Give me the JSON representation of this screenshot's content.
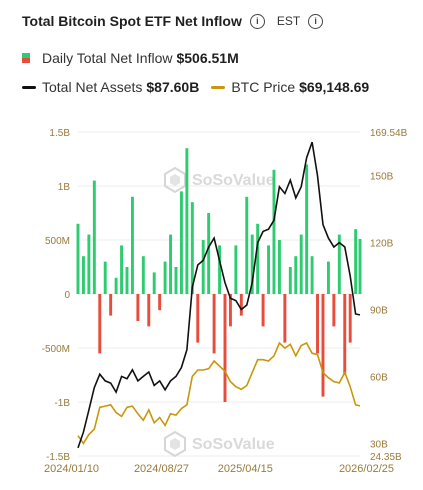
{
  "header": {
    "title": "Total Bitcoin Spot ETF Net Inflow",
    "timezone": "EST",
    "info_icon": "info-circle-icon"
  },
  "legend": {
    "inflow_label": "Daily Total Net Inflow",
    "inflow_value": "$506.51M",
    "assets_label": "Total Net Assets",
    "assets_value": "$87.60B",
    "price_label": "BTC Price",
    "price_value": "$69,148.69"
  },
  "watermark": "SoSoValue",
  "colors": {
    "inflow_pos": "#2ecc71",
    "inflow_neg": "#e74c3c",
    "assets": "#111111",
    "price": "#c9960c",
    "axis_text": "#9a7a3a",
    "grid": "#eeeeee"
  },
  "chart_data": {
    "type": "bar",
    "x_ticks": [
      "2024/01/10",
      "2024/08/27",
      "2025/04/15",
      "2026/02/25"
    ],
    "left_axis": {
      "ticks": [
        "1.5B",
        "1B",
        "500M",
        "0",
        "-500M",
        "-1B",
        "-1.5B"
      ],
      "ylim": [
        -1.5,
        1.5
      ]
    },
    "right_axis": {
      "ticks": [
        "169.54B",
        "150B",
        "120B",
        "90B",
        "60B",
        "30B",
        "24.35B"
      ],
      "ylim": [
        24.35,
        169.54
      ]
    },
    "series": [
      {
        "name": "Daily Total Net Inflow",
        "type": "bar",
        "axis": "left",
        "unit": "B",
        "x": [
          "2024/01/10",
          "2024/01/25",
          "2024/02/09",
          "2024/02/24",
          "2024/03/10",
          "2024/03/25",
          "2024/04/09",
          "2024/04/24",
          "2024/05/09",
          "2024/05/24",
          "2024/06/08",
          "2024/06/23",
          "2024/07/08",
          "2024/07/23",
          "2024/08/07",
          "2024/08/22",
          "2024/09/06",
          "2024/09/21",
          "2024/10/06",
          "2024/10/21",
          "2024/11/05",
          "2024/11/20",
          "2024/12/05",
          "2024/12/20",
          "2025/01/04",
          "2025/01/19",
          "2025/02/03",
          "2025/02/18",
          "2025/03/05",
          "2025/03/20",
          "2025/04/04",
          "2025/04/19",
          "2025/05/04",
          "2025/05/19",
          "2025/06/03",
          "2025/06/18",
          "2025/07/03",
          "2025/07/18",
          "2025/08/02",
          "2025/08/17",
          "2025/09/01",
          "2025/09/16",
          "2025/10/01",
          "2025/10/16",
          "2025/10/31",
          "2025/11/15",
          "2025/11/30",
          "2025/12/15",
          "2025/12/30",
          "2026/01/14",
          "2026/01/29",
          "2026/02/13",
          "2026/02/25"
        ],
        "values": [
          0.65,
          0.35,
          0.55,
          1.05,
          -0.55,
          0.3,
          -0.2,
          0.15,
          0.45,
          0.25,
          0.9,
          -0.25,
          0.35,
          -0.3,
          0.2,
          -0.15,
          0.3,
          0.55,
          0.25,
          0.95,
          1.35,
          0.85,
          -0.45,
          0.5,
          0.75,
          -0.55,
          0.45,
          -1.0,
          -0.3,
          0.45,
          -0.2,
          0.9,
          0.55,
          0.65,
          -0.3,
          0.45,
          1.15,
          0.5,
          -0.45,
          0.25,
          0.35,
          0.55,
          1.2,
          0.35,
          -0.55,
          -0.95,
          0.3,
          -0.3,
          0.55,
          -0.75,
          -0.45,
          0.6,
          0.51
        ]
      },
      {
        "name": "Total Net Assets",
        "type": "line",
        "axis": "right",
        "unit": "B",
        "x": [
          "2024/01/10",
          "2024/01/25",
          "2024/02/09",
          "2024/02/24",
          "2024/03/10",
          "2024/03/25",
          "2024/04/09",
          "2024/04/24",
          "2024/05/09",
          "2024/05/24",
          "2024/06/08",
          "2024/06/23",
          "2024/07/08",
          "2024/07/23",
          "2024/08/07",
          "2024/08/22",
          "2024/09/06",
          "2024/09/21",
          "2024/10/06",
          "2024/10/21",
          "2024/11/05",
          "2024/11/20",
          "2024/12/05",
          "2024/12/20",
          "2025/01/04",
          "2025/01/19",
          "2025/02/03",
          "2025/02/18",
          "2025/03/05",
          "2025/03/20",
          "2025/04/04",
          "2025/04/19",
          "2025/05/04",
          "2025/05/19",
          "2025/06/03",
          "2025/06/18",
          "2025/07/03",
          "2025/07/18",
          "2025/08/02",
          "2025/08/17",
          "2025/09/01",
          "2025/09/16",
          "2025/10/01",
          "2025/10/16",
          "2025/10/31",
          "2025/11/15",
          "2025/11/30",
          "2025/12/15",
          "2025/12/30",
          "2026/01/14",
          "2026/01/29",
          "2026/02/13",
          "2026/02/25"
        ],
        "values": [
          28,
          35,
          45,
          55,
          61,
          58,
          57,
          53,
          60,
          59,
          63,
          58,
          60,
          62,
          56,
          58,
          54,
          58,
          60,
          64,
          72,
          100,
          110,
          112,
          118,
          122,
          112,
          102,
          95,
          94,
          90,
          92,
          102,
          120,
          125,
          126,
          130,
          145,
          142,
          148,
          140,
          145,
          158,
          165,
          150,
          128,
          122,
          118,
          120,
          118,
          105,
          88,
          87.6
        ]
      },
      {
        "name": "BTC Price",
        "type": "line",
        "axis": "right",
        "unit": "USD",
        "x": [
          "2024/01/10",
          "2024/01/25",
          "2024/02/09",
          "2024/02/24",
          "2024/03/10",
          "2024/03/25",
          "2024/04/09",
          "2024/04/24",
          "2024/05/09",
          "2024/05/24",
          "2024/06/08",
          "2024/06/23",
          "2024/07/08",
          "2024/07/23",
          "2024/08/07",
          "2024/08/22",
          "2024/09/06",
          "2024/09/21",
          "2024/10/06",
          "2024/10/21",
          "2024/11/05",
          "2024/11/20",
          "2024/12/05",
          "2024/12/20",
          "2025/01/04",
          "2025/01/19",
          "2025/02/03",
          "2025/02/18",
          "2025/03/05",
          "2025/03/20",
          "2025/04/04",
          "2025/04/19",
          "2025/05/04",
          "2025/05/19",
          "2025/06/03",
          "2025/06/18",
          "2025/07/03",
          "2025/07/18",
          "2025/08/02",
          "2025/08/17",
          "2025/09/01",
          "2025/09/16",
          "2025/10/01",
          "2025/10/16",
          "2025/10/31",
          "2025/11/15",
          "2025/11/30",
          "2025/12/15",
          "2025/12/30",
          "2026/01/14",
          "2026/01/29",
          "2026/02/13",
          "2026/02/25"
        ],
        "values": [
          46000,
          40000,
          47000,
          51000,
          68000,
          69000,
          70000,
          64000,
          61000,
          68000,
          69000,
          63000,
          58000,
          66000,
          56000,
          60000,
          54000,
          63000,
          62000,
          67000,
          70000,
          92000,
          97000,
          97000,
          98000,
          104000,
          100000,
          96000,
          88000,
          84000,
          82000,
          85000,
          95000,
          105000,
          105000,
          104000,
          108000,
          118000,
          114000,
          117000,
          108000,
          116000,
          118000,
          110000,
          109000,
          95000,
          91000,
          88000,
          87000,
          95000,
          84000,
          70000,
          69148.69
        ]
      }
    ],
    "grid": true,
    "legend_position": "top"
  }
}
